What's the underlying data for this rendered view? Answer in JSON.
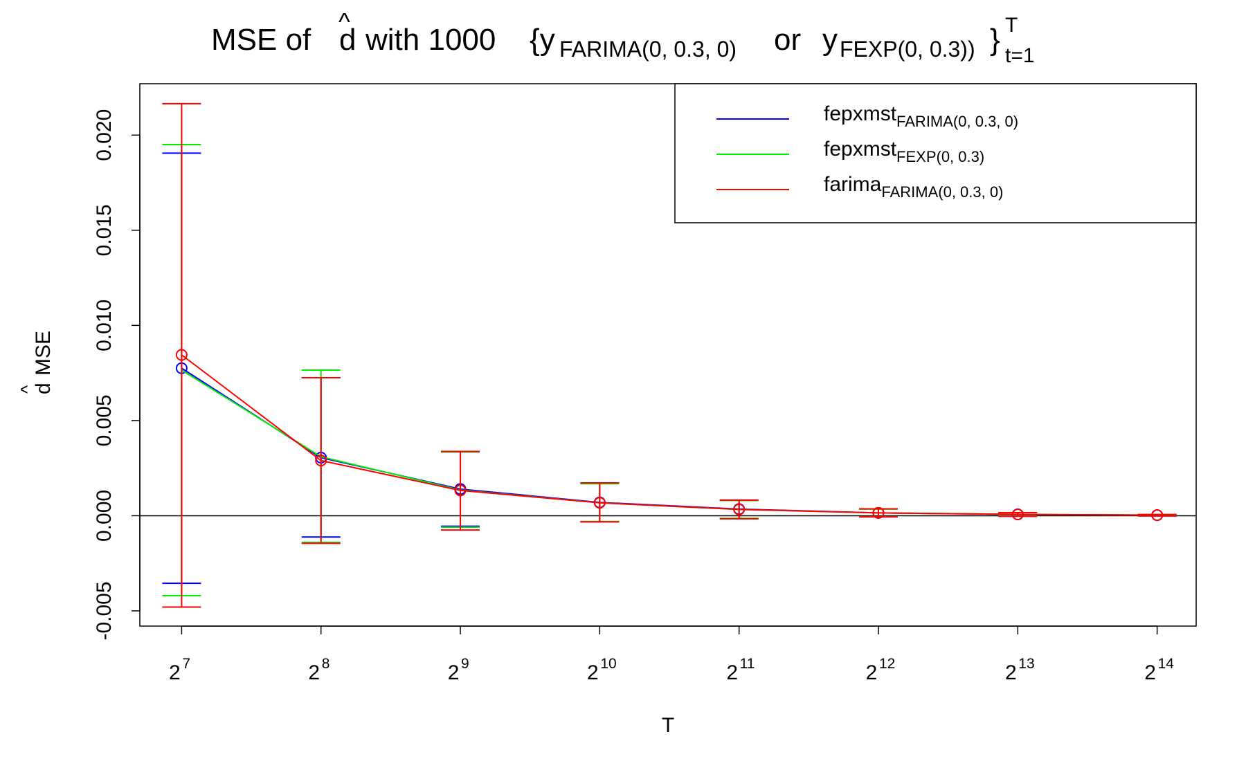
{
  "chart_data": {
    "type": "line",
    "title": {
      "pre": "MSE of",
      "d": "d",
      "hat": "^",
      "mid": "with 1000",
      "open": "{y",
      "sub1": "FARIMA(0, 0.3, 0)",
      "or": "or",
      "y2": "y",
      "sub2": "FEXP(0, 0.3))",
      "close": "}",
      "sup": "T",
      "sub3": "t=1"
    },
    "xlabel": "T",
    "ylabel": {
      "d": "d",
      "hat": "^",
      "rest": "MSE"
    },
    "x_ticks": [
      {
        "base": "2",
        "exp": "7"
      },
      {
        "base": "2",
        "exp": "8"
      },
      {
        "base": "2",
        "exp": "9"
      },
      {
        "base": "2",
        "exp": "10"
      },
      {
        "base": "2",
        "exp": "11"
      },
      {
        "base": "2",
        "exp": "12"
      },
      {
        "base": "2",
        "exp": "13"
      },
      {
        "base": "2",
        "exp": "14"
      }
    ],
    "y_ticks": [
      "-0.005",
      "0.000",
      "0.005",
      "0.010",
      "0.015",
      "0.020"
    ],
    "y_tick_values": [
      -0.005,
      0.0,
      0.005,
      0.01,
      0.015,
      0.02
    ],
    "xlim": [
      6.7,
      14.28
    ],
    "ylim": [
      -0.0058,
      0.0227
    ],
    "reference_line_y": 0,
    "legend": {
      "position": "top-right",
      "entries": [
        {
          "main": "fepxmst",
          "sub": "FARIMA(0, 0.3, 0)",
          "color": "#0000ff"
        },
        {
          "main": "fepxmst",
          "sub": "FEXP(0, 0.3)",
          "color": "#00ee00"
        },
        {
          "main": "farima",
          "sub": "FARIMA(0, 0.3, 0)",
          "color": "#ff0000"
        }
      ]
    },
    "series": [
      {
        "color": "#0000ff",
        "marker": "circle",
        "x": [
          7,
          8,
          9,
          10,
          11,
          12,
          13,
          14
        ],
        "values": [
          0.00775,
          0.00305,
          0.0014,
          0.0007,
          0.00035,
          0.00015,
          7e-05,
          3e-05
        ],
        "upper": [
          0.01905,
          0.00725,
          0.00335,
          0.00172,
          0.00082,
          0.00036,
          0.00016,
          6e-05
        ],
        "lower": [
          -0.00355,
          -0.00112,
          -0.00055,
          -0.00032,
          -0.00015,
          -6e-05,
          -3e-05,
          -1e-05
        ]
      },
      {
        "color": "#00ee00",
        "marker": "none",
        "x": [
          7,
          8,
          9,
          10,
          11,
          12,
          13,
          14
        ],
        "values": [
          0.00765,
          0.0031,
          0.00135,
          0.00068,
          0.00033,
          0.00015,
          7e-05,
          3e-05
        ],
        "upper": [
          0.0195,
          0.00765,
          0.00335,
          0.00168,
          0.0008,
          0.00035,
          0.00016,
          6e-05
        ],
        "lower": [
          -0.0042,
          -0.0014,
          -0.0006,
          -0.0003,
          -0.00014,
          -5e-05,
          -2e-05,
          -1e-05
        ]
      },
      {
        "color": "#ff0000",
        "marker": "circle",
        "x": [
          7,
          8,
          9,
          10,
          11,
          12,
          13,
          14
        ],
        "values": [
          0.00845,
          0.0029,
          0.00133,
          0.00068,
          0.00033,
          0.00015,
          7e-05,
          3e-05
        ],
        "upper": [
          0.02165,
          0.00725,
          0.00338,
          0.00172,
          0.00082,
          0.00036,
          0.00016,
          6e-05
        ],
        "lower": [
          -0.0048,
          -0.00145,
          -0.00075,
          -0.00032,
          -0.00016,
          -6e-05,
          -3e-05,
          -1e-05
        ]
      }
    ]
  }
}
